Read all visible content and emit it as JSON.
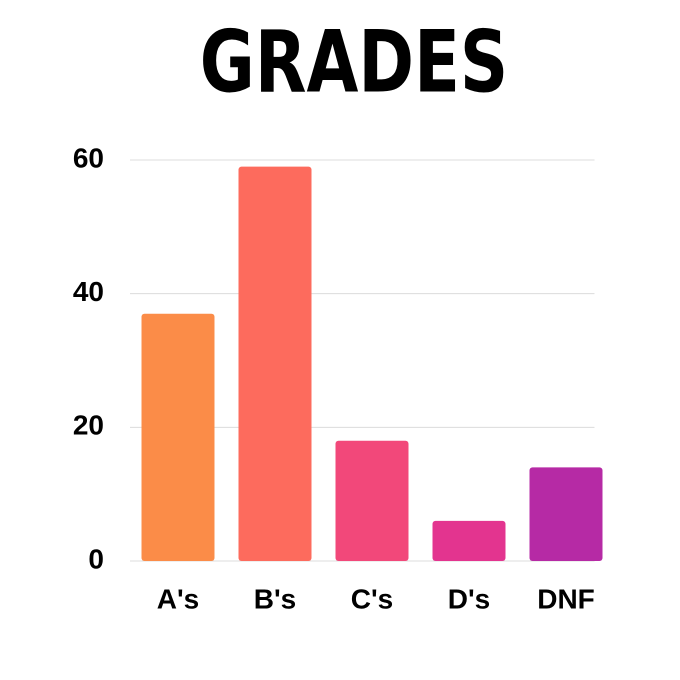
{
  "chart_data": {
    "type": "bar",
    "title": "GRADES",
    "categories": [
      "A's",
      "B's",
      "C's",
      "D's",
      "DNF"
    ],
    "values": [
      37,
      59,
      18,
      6,
      14
    ],
    "colors": [
      "#fb8c48",
      "#fd6b5d",
      "#f2487a",
      "#e3348f",
      "#b62aa5"
    ],
    "ylim": [
      0,
      60
    ],
    "yticks": [
      0,
      20,
      40,
      60
    ],
    "grid": true
  }
}
